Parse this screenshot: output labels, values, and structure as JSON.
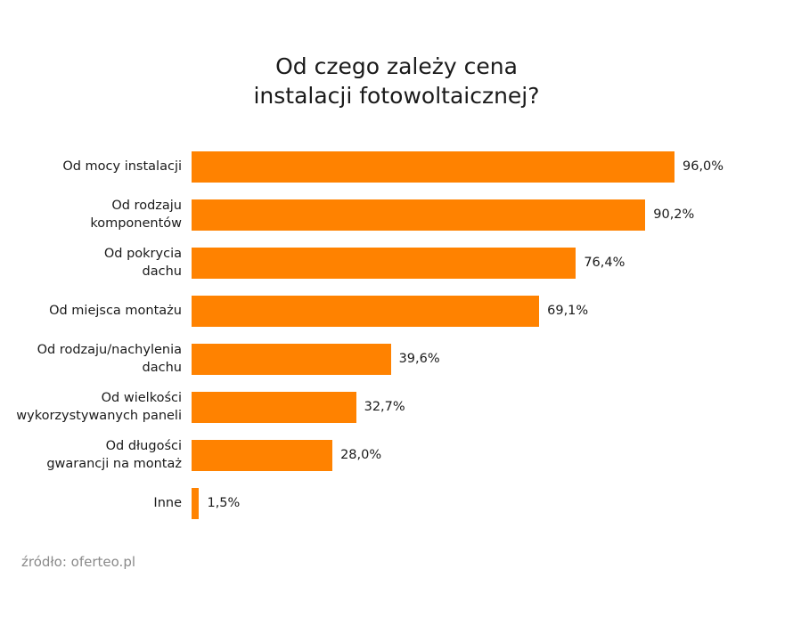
{
  "chart_data": {
    "type": "bar",
    "orientation": "horizontal",
    "title": [
      "Od czego zależy cena",
      "instalacji fotowoltaicznej?"
    ],
    "categories": [
      [
        "Od mocy instalacji"
      ],
      [
        "Od rodzaju",
        "komponentów"
      ],
      [
        "Od pokrycia",
        "dachu"
      ],
      [
        "Od miejsca montażu"
      ],
      [
        "Od rodzaju/nachylenia",
        "dachu"
      ],
      [
        "Od wielkości",
        "wykorzystywanych paneli"
      ],
      [
        "Od długości",
        "gwarancji na montaż"
      ],
      [
        "Inne"
      ]
    ],
    "values": [
      96.0,
      90.2,
      76.4,
      69.1,
      39.6,
      32.7,
      28.0,
      1.5
    ],
    "value_labels": [
      "96,0%",
      "90,2%",
      "76,4%",
      "69,1%",
      "39,6%",
      "32,7%",
      "28,0%",
      "1,5%"
    ],
    "xlabel": "",
    "ylabel": "",
    "xlim": [
      0,
      100
    ],
    "grid": false,
    "bar_color": "#ff8200"
  },
  "source": "źródło: oferteo.pl"
}
